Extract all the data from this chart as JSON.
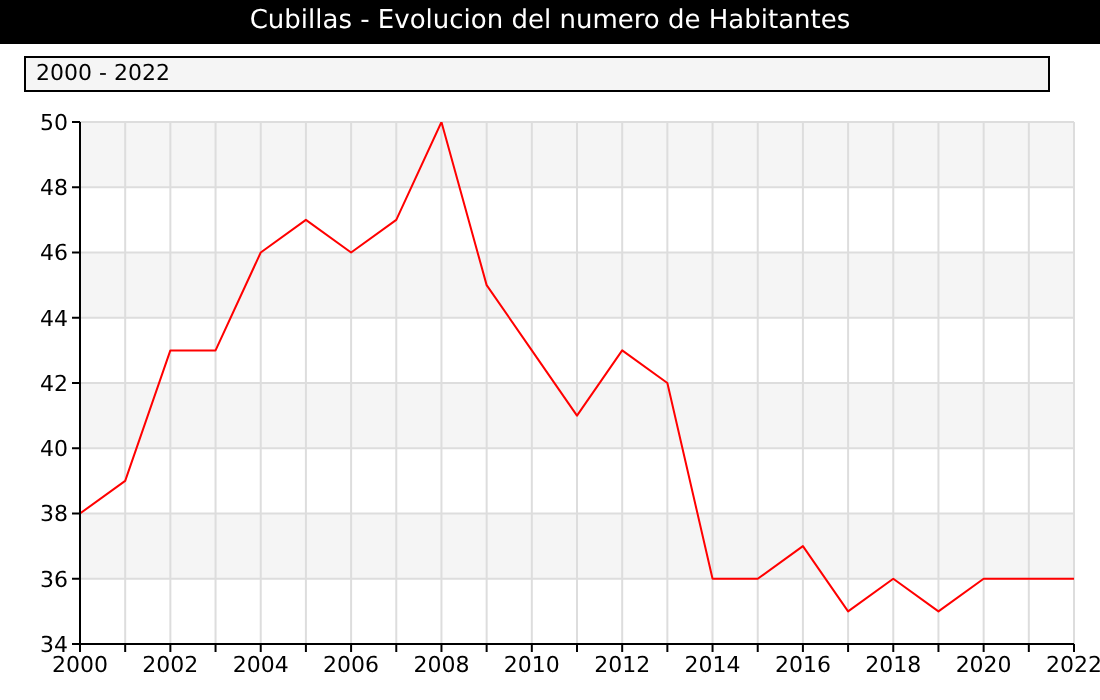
{
  "chart_data": {
    "type": "line",
    "title": "Cubillas - Evolucion del numero de Habitantes",
    "subtitle": "2000 - 2022",
    "x": [
      2000,
      2001,
      2002,
      2003,
      2004,
      2005,
      2006,
      2007,
      2008,
      2009,
      2010,
      2011,
      2012,
      2013,
      2014,
      2015,
      2016,
      2017,
      2018,
      2019,
      2020,
      2021,
      2022
    ],
    "series": [
      {
        "color": "#ff0000",
        "values": [
          38,
          39,
          43,
          43,
          46,
          47,
          46,
          47,
          50,
          45,
          43,
          41,
          43,
          42,
          36,
          36,
          37,
          35,
          36,
          35,
          36,
          36,
          36
        ]
      }
    ],
    "xlim": [
      2000,
      2022
    ],
    "xticks": [
      2000,
      {
        "value": 2001,
        "label": null
      },
      2002,
      {
        "value": 2003,
        "label": null
      },
      2004,
      {
        "value": 2005,
        "label": null
      },
      2006,
      {
        "value": 2007,
        "label": null
      },
      2008,
      {
        "value": 2009,
        "label": null
      },
      2010,
      {
        "value": 2011,
        "label": null
      },
      2012,
      {
        "value": 2013,
        "label": null
      },
      2014,
      {
        "value": 2015,
        "label": null
      },
      2016,
      {
        "value": 2017,
        "label": null
      },
      2018,
      {
        "value": 2019,
        "label": null
      },
      2020,
      {
        "value": 2021,
        "label": null
      },
      2022
    ],
    "ylim": [
      34,
      50
    ],
    "yticks": [
      34,
      36,
      38,
      40,
      42,
      44,
      46,
      48,
      50
    ],
    "grid": true
  }
}
